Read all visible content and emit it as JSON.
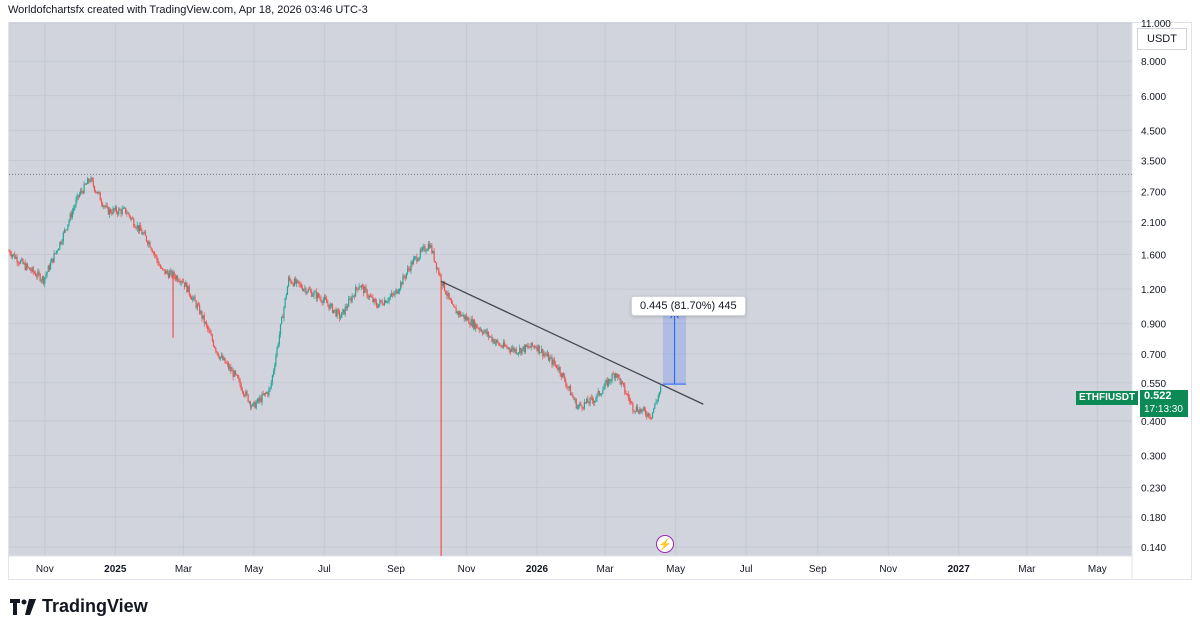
{
  "header": {
    "caption": "Worldofchartsfx created with TradingView.com, Apr 18, 2026 03:46 UTC-3"
  },
  "currency": "USDT",
  "symbol": "ETHFIUSDT",
  "last_price": "0.522",
  "countdown": "17:13:30",
  "measure_label": "0.445 (81.70%) 445",
  "brand": "TradingView",
  "colors": {
    "up": "#26a69a",
    "down": "#ef5350",
    "background": "#d1d4dc",
    "price_tag": "#0b8a55",
    "measure": "#2962ff",
    "trendline": "#434651"
  },
  "icons": [
    "flash-icon",
    "tradingview-logo-icon"
  ],
  "chart_data": {
    "type": "candlestick",
    "scale": "log",
    "y_ticks": [
      "11.000",
      "8.000",
      "6.000",
      "4.500",
      "3.500",
      "2.700",
      "2.100",
      "1.600",
      "1.200",
      "0.900",
      "0.700",
      "0.550",
      "0.400",
      "0.300",
      "0.230",
      "0.180",
      "0.140"
    ],
    "x_ticks": [
      "Nov",
      "2025",
      "Mar",
      "May",
      "Jul",
      "Sep",
      "Nov",
      "2026",
      "Mar",
      "May",
      "Jul",
      "Sep",
      "Nov",
      "2027",
      "Mar",
      "May"
    ],
    "grid": true,
    "price_path": [
      [
        "2024-10-01",
        1.65
      ],
      [
        "2024-10-15",
        1.45
      ],
      [
        "2024-10-31",
        1.3
      ],
      [
        "2024-11-15",
        1.8
      ],
      [
        "2024-11-30",
        2.6
      ],
      [
        "2024-12-10",
        3.0
      ],
      [
        "2024-12-25",
        2.3
      ],
      [
        "2025-01-10",
        2.3
      ],
      [
        "2025-01-31",
        1.75
      ],
      [
        "2025-02-10",
        1.4
      ],
      [
        "2025-02-28",
        1.3
      ],
      [
        "2025-03-15",
        1.0
      ],
      [
        "2025-03-31",
        0.7
      ],
      [
        "2025-04-15",
        0.58
      ],
      [
        "2025-04-30",
        0.45
      ],
      [
        "2025-05-15",
        0.52
      ],
      [
        "2025-05-31",
        1.3
      ],
      [
        "2025-06-15",
        1.2
      ],
      [
        "2025-06-30",
        1.1
      ],
      [
        "2025-07-15",
        0.95
      ],
      [
        "2025-07-31",
        1.25
      ],
      [
        "2025-08-15",
        1.05
      ],
      [
        "2025-08-31",
        1.15
      ],
      [
        "2025-09-15",
        1.5
      ],
      [
        "2025-09-30",
        1.75
      ],
      [
        "2025-10-10",
        1.3
      ],
      [
        "2025-10-20",
        1.02
      ],
      [
        "2025-11-15",
        0.85
      ],
      [
        "2025-11-30",
        0.75
      ],
      [
        "2025-12-15",
        0.72
      ],
      [
        "2025-12-31",
        0.75
      ],
      [
        "2026-01-20",
        0.62
      ],
      [
        "2026-02-05",
        0.45
      ],
      [
        "2026-02-20",
        0.48
      ],
      [
        "2026-03-10",
        0.6
      ],
      [
        "2026-03-25",
        0.45
      ],
      [
        "2026-04-10",
        0.42
      ],
      [
        "2026-04-18",
        0.522
      ]
    ],
    "wicks": [
      {
        "date": "2025-02-20",
        "low": 0.8
      },
      {
        "date": "2025-10-10",
        "low": 0.13
      }
    ],
    "annotations": {
      "trendline": [
        [
          "2025-10-10",
          1.28
        ],
        [
          "2026-05-25",
          0.46
        ]
      ],
      "dotted_level": 3.12,
      "measure": {
        "date_from": "2026-04-20",
        "date_to": "2026-05-10",
        "from": 0.544,
        "to": 0.99,
        "change": 0.445,
        "percent": 81.7
      }
    }
  }
}
